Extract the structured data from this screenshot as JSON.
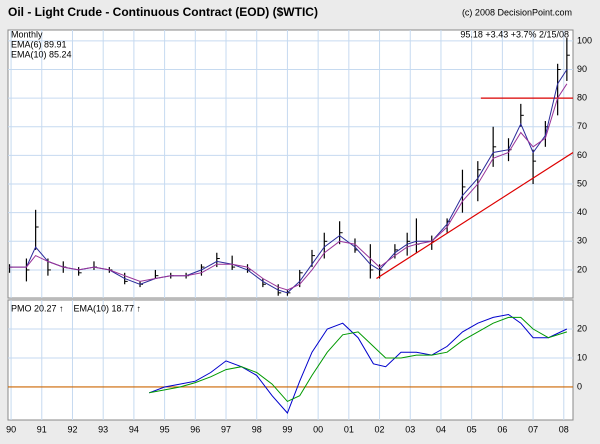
{
  "chart_data": [
    {
      "type": "ohlc",
      "title": "Oil - Light Crude - Continuous Contract (EOD) ($WTIC)",
      "credit": "(c) 2008 DecisionPoint.com",
      "period": "Monthly",
      "quote": "95.18 +3.43 +3.7% 2/15/08",
      "color": "#000000",
      "x": [
        1989.95,
        1990.5,
        1990.8,
        1991.2,
        1991.7,
        1992.2,
        1992.7,
        1993.2,
        1993.7,
        1994.2,
        1994.7,
        1995.2,
        1995.7,
        1996.2,
        1996.7,
        1997.2,
        1997.7,
        1998.2,
        1998.7,
        1999.0,
        1999.4,
        1999.8,
        2000.2,
        2000.7,
        2001.2,
        2001.7,
        2002.0,
        2002.5,
        2002.9,
        2003.2,
        2003.7,
        2004.2,
        2004.7,
        2005.2,
        2005.7,
        2006.2,
        2006.6,
        2007.0,
        2007.4,
        2007.8,
        2008.1
      ],
      "high": [
        22,
        24,
        41,
        24,
        23,
        21,
        23,
        21,
        19,
        16,
        20,
        19,
        19,
        22,
        26,
        25,
        22,
        17,
        15,
        13,
        20,
        27,
        33,
        37,
        31,
        29,
        22,
        29,
        33,
        38,
        32,
        38,
        55,
        58,
        70,
        66,
        78,
        62,
        72,
        92,
        101
      ],
      "low": [
        19,
        16,
        27,
        18,
        19,
        18,
        20,
        19,
        15,
        14,
        17,
        17,
        17,
        18,
        21,
        20,
        19,
        14,
        11,
        11,
        14,
        21,
        24,
        29,
        26,
        17,
        17,
        24,
        25,
        26,
        27,
        33,
        40,
        44,
        56,
        58,
        70,
        50,
        63,
        74,
        86
      ],
      "close": [
        21,
        20,
        35,
        20,
        21,
        19,
        21,
        20,
        16,
        15,
        18,
        18,
        18,
        21,
        24,
        21,
        20,
        15,
        12,
        12,
        19,
        25,
        30,
        33,
        27,
        20,
        20,
        27,
        30,
        29,
        30,
        37,
        49,
        55,
        63,
        62,
        74,
        58,
        70,
        90,
        95
      ],
      "series": [
        {
          "name": "EMA(6) 89.91",
          "color": "#2a2a9a",
          "values": [
            21,
            21,
            28,
            23,
            21,
            20,
            21,
            20,
            17,
            15,
            17,
            18,
            18,
            20,
            23,
            22,
            20,
            16,
            13,
            12,
            16,
            22,
            28,
            32,
            28,
            22,
            20,
            26,
            29,
            30,
            30,
            36,
            46,
            52,
            61,
            62,
            71,
            61,
            67,
            85,
            90
          ]
        },
        {
          "name": "EMA(10) 85.24",
          "color": "#993399",
          "values": [
            21,
            21,
            25,
            23,
            21,
            20,
            21,
            20,
            18,
            16,
            17,
            18,
            18,
            19,
            22,
            22,
            21,
            17,
            14,
            13,
            15,
            20,
            26,
            30,
            29,
            24,
            21,
            25,
            28,
            29,
            30,
            35,
            44,
            50,
            59,
            61,
            68,
            63,
            66,
            80,
            85
          ]
        }
      ],
      "lines": [
        {
          "color": "#dd0000",
          "x": [
            2005.3,
            2008.3
          ],
          "y": [
            80,
            80
          ]
        },
        {
          "color": "#dd0000",
          "x": [
            2001.9,
            2008.3
          ],
          "y": [
            17,
            61
          ]
        }
      ],
      "xlim": [
        1989.9,
        2008.3
      ],
      "xticks": [
        {
          "value": 1990,
          "label": "90"
        },
        {
          "value": 1991,
          "label": "91"
        },
        {
          "value": 1992,
          "label": "92"
        },
        {
          "value": 1993,
          "label": "93"
        },
        {
          "value": 1994,
          "label": "94"
        },
        {
          "value": 1995,
          "label": "95"
        },
        {
          "value": 1996,
          "label": "96"
        },
        {
          "value": 1997,
          "label": "97"
        },
        {
          "value": 1998,
          "label": "98"
        },
        {
          "value": 1999,
          "label": "99"
        },
        {
          "value": 2000,
          "label": "00"
        },
        {
          "value": 2001,
          "label": "01"
        },
        {
          "value": 2002,
          "label": "02"
        },
        {
          "value": 2003,
          "label": "03"
        },
        {
          "value": 2004,
          "label": "04"
        },
        {
          "value": 2005,
          "label": "05"
        },
        {
          "value": 2006,
          "label": "06"
        },
        {
          "value": 2007,
          "label": "07"
        },
        {
          "value": 2008,
          "label": "08"
        }
      ],
      "ylim": [
        10.2,
        103.8
      ],
      "yticks": [
        20,
        30,
        40,
        50,
        60,
        70,
        80,
        90,
        100
      ],
      "grid": true
    },
    {
      "type": "line",
      "x": [
        1994.5,
        1995.0,
        1995.5,
        1996.0,
        1996.5,
        1997.0,
        1997.5,
        1998.0,
        1998.5,
        1999.0,
        1999.4,
        1999.8,
        2000.3,
        2000.8,
        2001.3,
        2001.8,
        2002.2,
        2002.7,
        2003.2,
        2003.7,
        2004.2,
        2004.7,
        2005.2,
        2005.7,
        2006.2,
        2006.6,
        2007.0,
        2007.5,
        2008.1
      ],
      "series": [
        {
          "name": "PMO  20.27 ↑",
          "color": "#0000cc",
          "values": [
            -2,
            0,
            1,
            2,
            5,
            9,
            7,
            4,
            -3,
            -9,
            2,
            12,
            20,
            22,
            17,
            8,
            7,
            12,
            12,
            11,
            14,
            19,
            22,
            24,
            25,
            22,
            17,
            17,
            20
          ]
        },
        {
          "name": "EMA(10)  18.77 ↑",
          "color": "#009900",
          "values": [
            -2,
            -1,
            0,
            1.5,
            3.5,
            6,
            7,
            5,
            1,
            -5,
            -3,
            4,
            12,
            18,
            19,
            14,
            10,
            10,
            11,
            11,
            12,
            16,
            19,
            22,
            24,
            24,
            20,
            17,
            19
          ]
        }
      ],
      "reference_line": {
        "value": 0,
        "color": "#cc6600"
      },
      "ylim": [
        -11.4,
        30
      ],
      "yticks": [
        0,
        10,
        20
      ],
      "grid": true
    }
  ]
}
